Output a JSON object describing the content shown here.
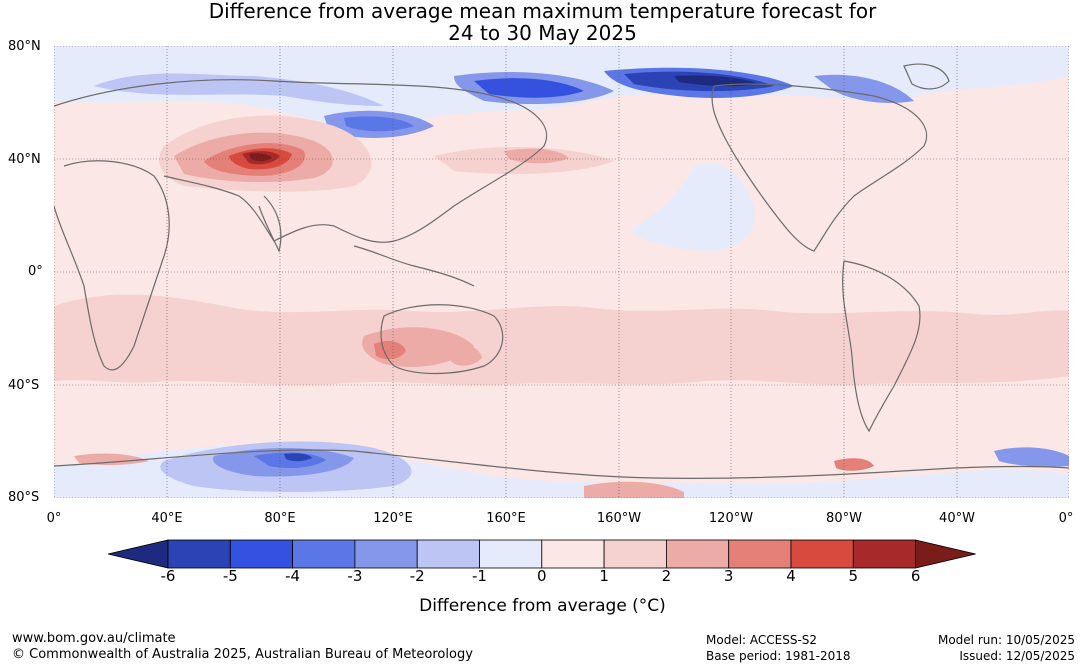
{
  "title_line1": "Difference from average mean maximum temperature forecast for",
  "title_line2": "24 to 30 May 2025",
  "lat_labels": [
    "80°N",
    "40°N",
    "0°",
    "40°S",
    "80°S"
  ],
  "lon_labels": [
    "0°",
    "40°E",
    "80°E",
    "120°E",
    "160°E",
    "160°W",
    "120°W",
    "80°W",
    "40°W",
    "0°"
  ],
  "legend": {
    "title": "Difference from average (°C)",
    "ticks": [
      "-6",
      "-5",
      "-4",
      "-3",
      "-2",
      "-1",
      "0",
      "1",
      "2",
      "3",
      "4",
      "5",
      "6"
    ],
    "colors": [
      "#1d2a80",
      "#2b43b5",
      "#3451e0",
      "#5b76e6",
      "#8497ea",
      "#bcc5f3",
      "#e6ebfb",
      "#fbe7e5",
      "#f5d1cf",
      "#edaba7",
      "#e58078",
      "#d94a3e",
      "#a8292a",
      "#7a1c1a"
    ]
  },
  "footer": {
    "website": "www.bom.gov.au/climate",
    "copyright": "© Commonwealth of Australia 2025, Australian Bureau of Meteorology",
    "model": "Model: ACCESS-S2",
    "base_period": "Base period: 1981-2018",
    "model_run": "Model run: 10/05/2025",
    "issued": "Issued: 12/05/2025"
  }
}
